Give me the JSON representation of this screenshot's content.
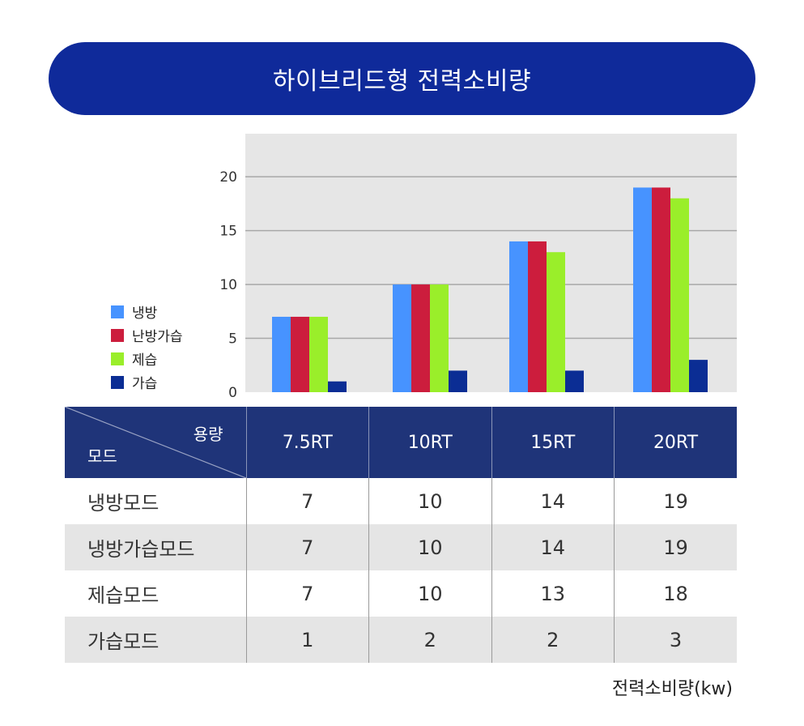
{
  "title": "하이브리드형 전력소비량",
  "unit_note": "전력소비량(kw)",
  "colors": {
    "banner": "#0f2a9a",
    "table_header": "#1f3479",
    "plot_bg": "#e6e6e6"
  },
  "chart_data": {
    "type": "bar",
    "title": "",
    "xlabel": "",
    "ylabel": "",
    "categories": [
      "7.5RT",
      "10RT",
      "15RT",
      "20RT"
    ],
    "ylim": [
      0,
      24
    ],
    "yticks": [
      0,
      5,
      10,
      15,
      20
    ],
    "grid": true,
    "legend_position": "left",
    "series": [
      {
        "name": "냉방",
        "color": "#4793ff",
        "values": [
          7,
          10,
          14,
          19
        ]
      },
      {
        "name": "난방가습",
        "color": "#cc1d3d",
        "values": [
          7,
          10,
          14,
          19
        ]
      },
      {
        "name": "제습",
        "color": "#9aee2a",
        "values": [
          7,
          10,
          13,
          18
        ]
      },
      {
        "name": "가습",
        "color": "#0b2d94",
        "values": [
          1,
          2,
          2,
          3
        ]
      }
    ]
  },
  "table": {
    "header_top": "용량",
    "header_bottom": "모드",
    "columns": [
      "7.5RT",
      "10RT",
      "15RT",
      "20RT"
    ],
    "rows": [
      {
        "mode": "냉방모드",
        "values": [
          "7",
          "10",
          "14",
          "19"
        ]
      },
      {
        "mode": "냉방가습모드",
        "values": [
          "7",
          "10",
          "14",
          "19"
        ]
      },
      {
        "mode": "제습모드",
        "values": [
          "7",
          "10",
          "13",
          "18"
        ]
      },
      {
        "mode": "가습모드",
        "values": [
          "1",
          "2",
          "2",
          "3"
        ]
      }
    ]
  }
}
